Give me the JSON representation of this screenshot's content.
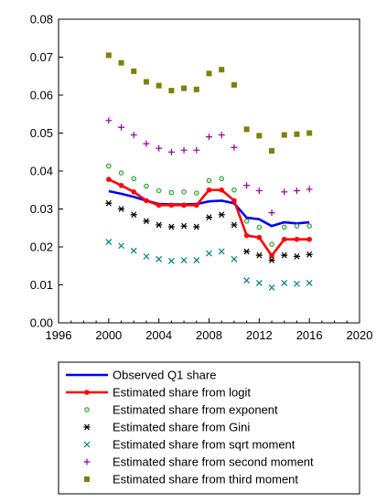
{
  "chart_data": {
    "type": "line",
    "x_ticks": [
      "1996",
      "2000",
      "2004",
      "2008",
      "2012",
      "2016",
      "2020"
    ],
    "y_ticks": [
      "0.00",
      "0.01",
      "0.02",
      "0.03",
      "0.04",
      "0.05",
      "0.06",
      "0.07",
      "0.08"
    ],
    "xlim": [
      1996,
      2020
    ],
    "ylim": [
      0,
      0.08
    ],
    "grid": false,
    "legend_position": "bottom",
    "x": [
      2000,
      2001,
      2002,
      2003,
      2004,
      2005,
      2006,
      2007,
      2008,
      2009,
      2010,
      2011,
      2012,
      2013,
      2014,
      2015,
      2016
    ],
    "series": [
      {
        "name": "Observed Q1 share",
        "style": "line",
        "color": "#0000ff",
        "values": [
          0.0347,
          0.034,
          0.0332,
          0.0322,
          0.0313,
          0.0312,
          0.0312,
          0.0313,
          0.032,
          0.0322,
          0.0315,
          0.0277,
          0.0273,
          0.0255,
          0.0265,
          0.0262,
          0.0265
        ]
      },
      {
        "name": "Estimated share from logit",
        "style": "line-marker",
        "color": "#ff0000",
        "values": [
          0.0378,
          0.0362,
          0.0345,
          0.0322,
          0.031,
          0.031,
          0.031,
          0.031,
          0.035,
          0.035,
          0.0322,
          0.023,
          0.0225,
          0.0177,
          0.022,
          0.022,
          0.022
        ]
      },
      {
        "name": "Estimated share from exponent",
        "style": "circle",
        "color": "#2e8b57",
        "values": [
          0.0413,
          0.0395,
          0.038,
          0.036,
          0.0348,
          0.0343,
          0.0345,
          0.0342,
          0.0375,
          0.038,
          0.035,
          0.0268,
          0.0252,
          0.0207,
          0.0252,
          0.0255,
          0.0255
        ]
      },
      {
        "name": "Estimated share from Gini",
        "style": "asterisk",
        "color": "#000000",
        "values": [
          0.0315,
          0.03,
          0.0285,
          0.0268,
          0.0258,
          0.0253,
          0.0255,
          0.0253,
          0.0278,
          0.0285,
          0.0258,
          0.0188,
          0.0178,
          0.0165,
          0.0178,
          0.0175,
          0.018
        ]
      },
      {
        "name": "Estimated share from sqrt moment",
        "style": "x",
        "color": "#008080",
        "values": [
          0.0213,
          0.0203,
          0.019,
          0.0175,
          0.0168,
          0.0163,
          0.0165,
          0.0165,
          0.0183,
          0.0188,
          0.0168,
          0.0112,
          0.0105,
          0.0093,
          0.0105,
          0.0103,
          0.0105
        ]
      },
      {
        "name": "Estimated share from second moment",
        "style": "plus",
        "color": "#990099",
        "values": [
          0.0533,
          0.0515,
          0.0495,
          0.0472,
          0.046,
          0.045,
          0.0455,
          0.0455,
          0.049,
          0.0495,
          0.0462,
          0.0362,
          0.0348,
          0.029,
          0.0345,
          0.0348,
          0.0352
        ]
      },
      {
        "name": "Estimated share from third moment",
        "style": "square",
        "color": "#808000",
        "values": [
          0.0705,
          0.0685,
          0.0663,
          0.0635,
          0.0625,
          0.0612,
          0.0618,
          0.0615,
          0.0657,
          0.0667,
          0.0627,
          0.051,
          0.0493,
          0.0453,
          0.0495,
          0.0497,
          0.05
        ]
      }
    ]
  }
}
